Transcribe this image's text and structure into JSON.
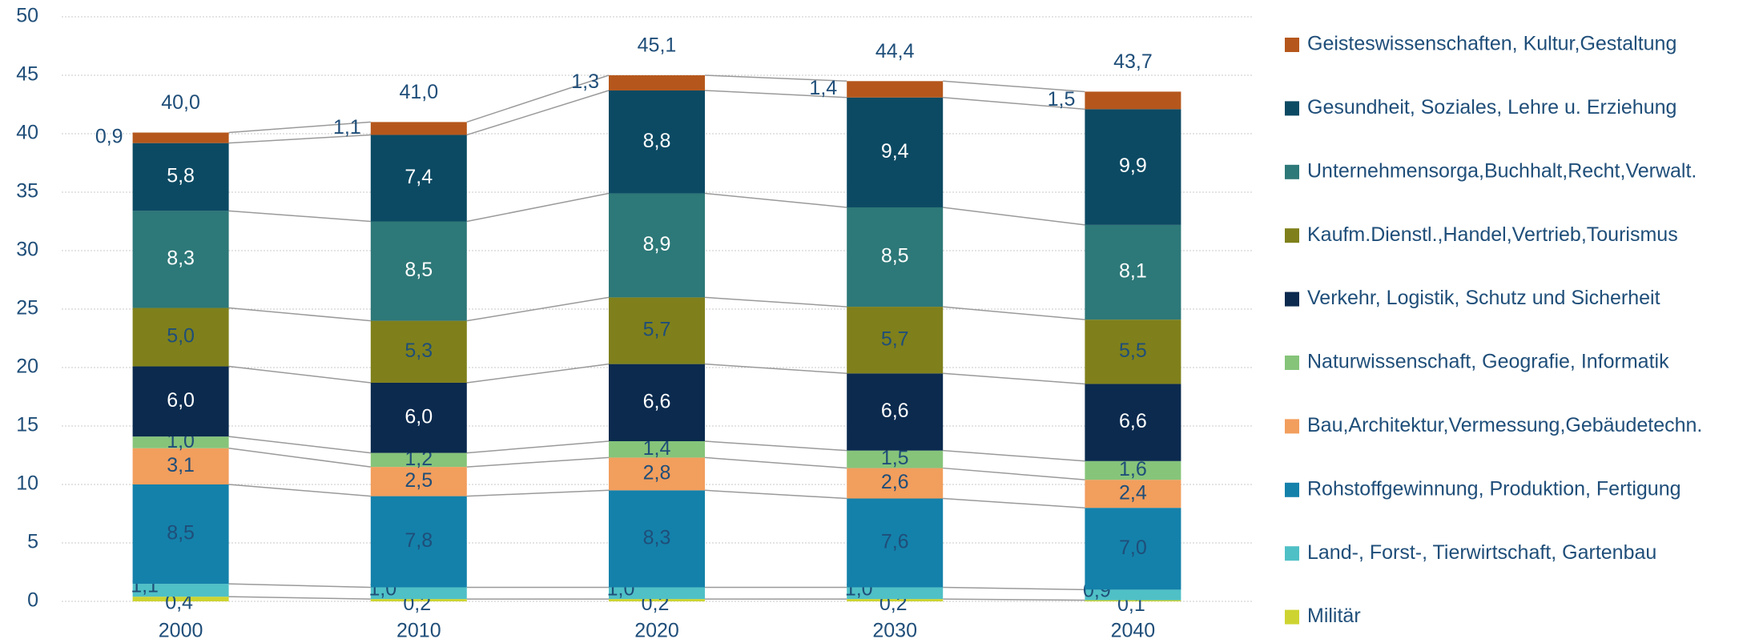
{
  "chart_data": {
    "type": "stacked_bar",
    "categories": [
      "2000",
      "2010",
      "2020",
      "2030",
      "2040"
    ],
    "ylim": [
      0,
      50
    ],
    "yticks": [
      0,
      5,
      10,
      15,
      20,
      25,
      30,
      35,
      40,
      45,
      50
    ],
    "grid": true,
    "series": [
      {
        "name": "Militär",
        "color": "#cdd431",
        "values": [
          0.4,
          0.2,
          0.2,
          0.2,
          0.1
        ],
        "value_labels": [
          "0,4",
          "0,2",
          "0,2",
          "0,2",
          "0,1"
        ]
      },
      {
        "name": "Land-, Forst-, Tierwirtschaft, Gartenbau",
        "color": "#4fc0c6",
        "values": [
          1.1,
          1.0,
          1.0,
          1.0,
          0.9
        ],
        "value_labels": [
          "1,1",
          "1,0",
          "1,0",
          "1,0",
          "0,9"
        ]
      },
      {
        "name": "Rohstoffgewinnung, Produktion, Fertigung",
        "color": "#1481aa",
        "values": [
          8.5,
          7.8,
          8.3,
          7.6,
          7.0
        ],
        "value_labels": [
          "8,5",
          "7,8",
          "8,3",
          "7,6",
          "7,0"
        ]
      },
      {
        "name": "Bau,Architektur,Vermessung,Gebäudetechn.",
        "color": "#f29e5d",
        "values": [
          3.1,
          2.5,
          2.8,
          2.6,
          2.4
        ],
        "value_labels": [
          "3,1",
          "2,5",
          "2,8",
          "2,6",
          "2,4"
        ]
      },
      {
        "name": "Naturwissenschaft, Geografie, Informatik",
        "color": "#86c47a",
        "values": [
          1.0,
          1.2,
          1.4,
          1.5,
          1.6
        ],
        "value_labels": [
          "1,0",
          "1,2",
          "1,4",
          "1,5",
          "1,6"
        ]
      },
      {
        "name": "Verkehr, Logistik, Schutz und Sicherheit",
        "color": "#0b2a4e",
        "values": [
          6.0,
          6.0,
          6.6,
          6.6,
          6.6
        ],
        "value_labels": [
          "6,0",
          "6,0",
          "6,6",
          "6,6",
          "6,6"
        ]
      },
      {
        "name": "Kaufm.Dienstl.,Handel,Vertrieb,Tourismus",
        "color": "#7f801b",
        "values": [
          5.0,
          5.3,
          5.7,
          5.7,
          5.5
        ],
        "value_labels": [
          "5,0",
          "5,3",
          "5,7",
          "5,7",
          "5,5"
        ]
      },
      {
        "name": "Unternehmensorga,Buchhalt,Recht,Verwalt.",
        "color": "#2d7878",
        "values": [
          8.3,
          8.5,
          8.9,
          8.5,
          8.1
        ],
        "value_labels": [
          "8,3",
          "8,5",
          "8,9",
          "8,5",
          "8,1"
        ]
      },
      {
        "name": "Gesundheit, Soziales, Lehre u. Erziehung",
        "color": "#0c4a63",
        "values": [
          5.8,
          7.4,
          8.8,
          9.4,
          9.9
        ],
        "value_labels": [
          "5,8",
          "7,4",
          "8,8",
          "9,4",
          "9,9"
        ]
      },
      {
        "name": "Geisteswissenschaften, Kultur,Gestaltung",
        "color": "#b5571c",
        "values": [
          0.9,
          1.1,
          1.3,
          1.4,
          1.5
        ],
        "value_labels": [
          "0,9",
          "1,1",
          "1,3",
          "1,4",
          "1,5"
        ]
      }
    ],
    "totals": {
      "values": [
        40.0,
        41.0,
        45.1,
        44.4,
        43.7
      ],
      "value_labels": [
        "40,0",
        "41,0",
        "45,1",
        "44,4",
        "43,7"
      ]
    }
  }
}
